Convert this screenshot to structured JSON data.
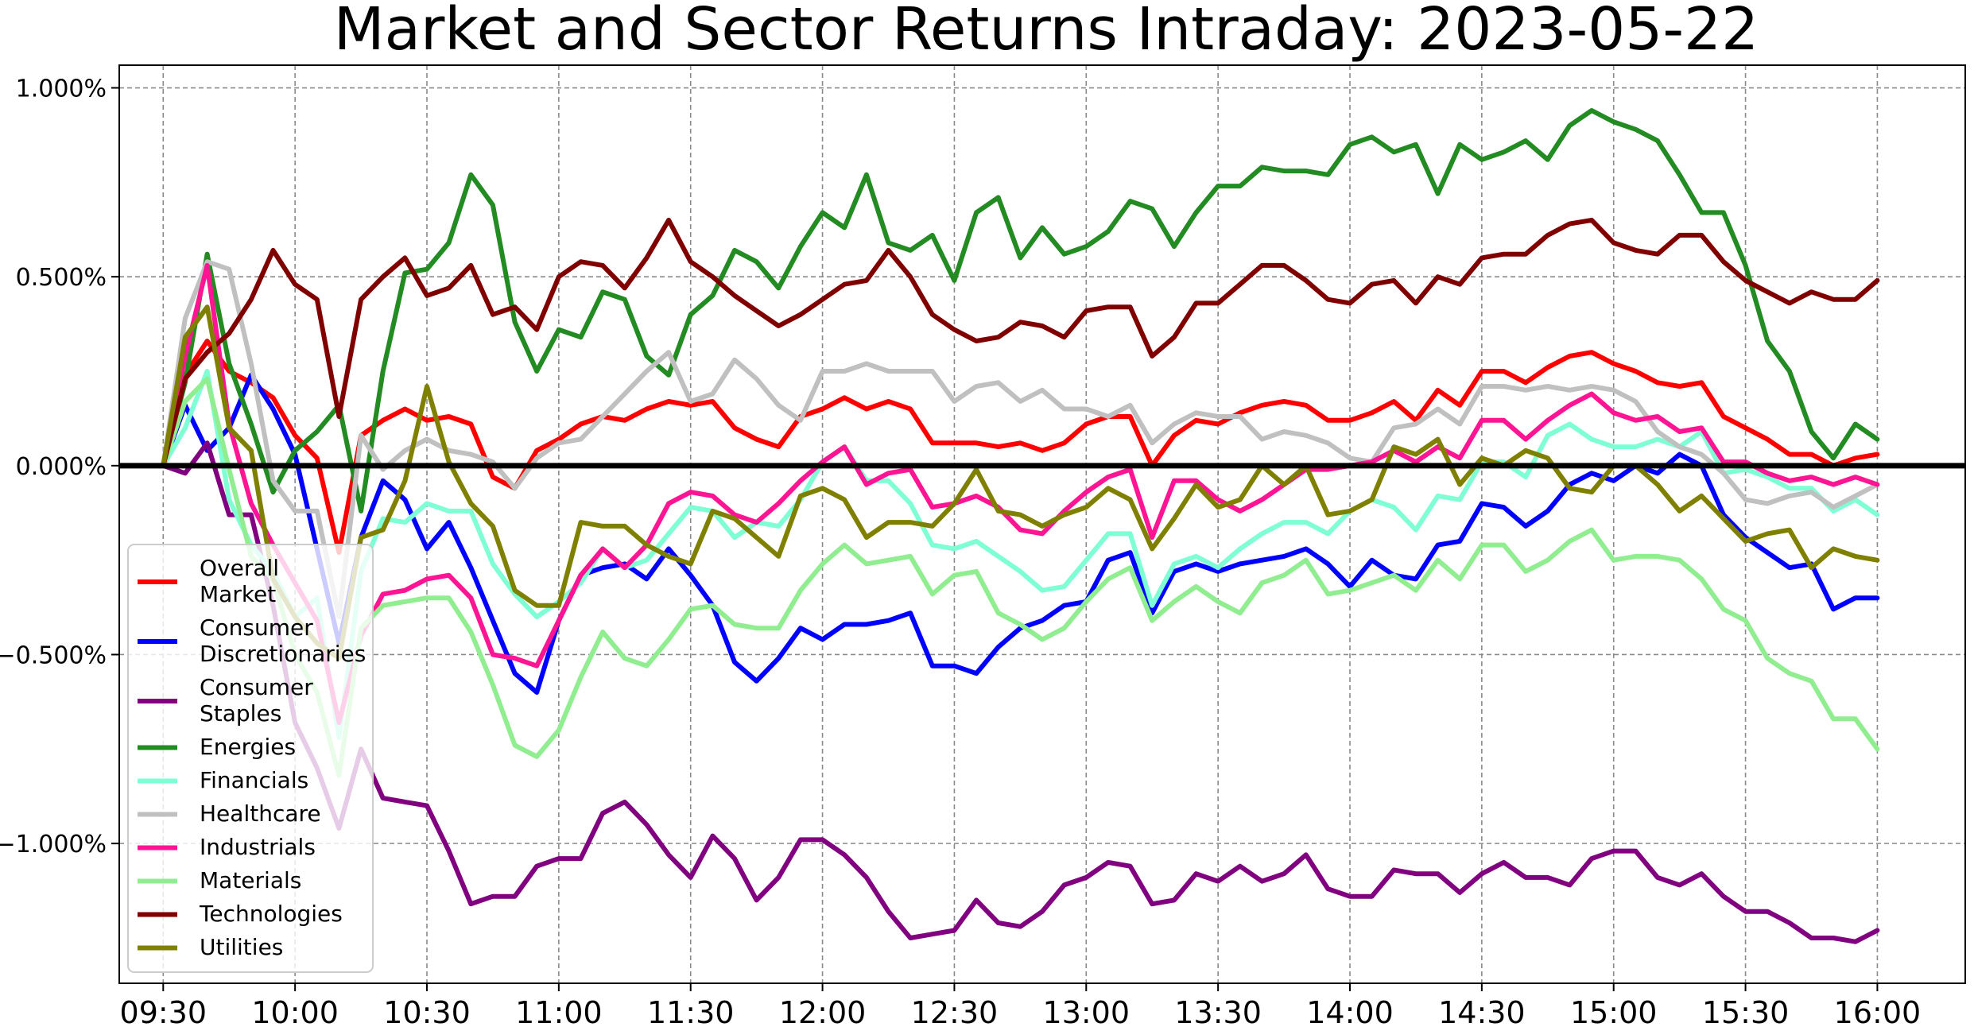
{
  "chart_data": {
    "type": "line",
    "title": "Market and Sector Returns Intraday: 2023-05-22",
    "xlabel": "",
    "ylabel": "",
    "x_ticks": [
      "09:30",
      "10:00",
      "10:30",
      "11:00",
      "11:30",
      "12:00",
      "12:30",
      "13:00",
      "13:30",
      "14:00",
      "14:30",
      "15:00",
      "15:30",
      "16:00"
    ],
    "y_ticks": [
      "−1.000%",
      "−0.500%",
      "0.000%",
      "0.500%",
      "1.000%"
    ],
    "y_tick_values": [
      -1.0,
      -0.5,
      0.0,
      0.5,
      1.0
    ],
    "xlim": [
      "09:20",
      "16:20"
    ],
    "ylim": [
      -1.37,
      1.06
    ],
    "grid": true,
    "zero_line": true,
    "legend_position": "lower-left",
    "x": [
      "09:30",
      "09:35",
      "09:40",
      "09:45",
      "09:50",
      "09:55",
      "10:00",
      "10:05",
      "10:10",
      "10:15",
      "10:20",
      "10:25",
      "10:30",
      "10:35",
      "10:40",
      "10:45",
      "10:50",
      "10:55",
      "11:00",
      "11:05",
      "11:10",
      "11:15",
      "11:20",
      "11:25",
      "11:30",
      "11:35",
      "11:40",
      "11:45",
      "11:50",
      "11:55",
      "12:00",
      "12:05",
      "12:10",
      "12:15",
      "12:20",
      "12:25",
      "12:30",
      "12:35",
      "12:40",
      "12:45",
      "12:50",
      "12:55",
      "13:00",
      "13:05",
      "13:10",
      "13:15",
      "13:20",
      "13:25",
      "13:30",
      "13:35",
      "13:40",
      "13:45",
      "13:50",
      "13:55",
      "14:00",
      "14:05",
      "14:10",
      "14:15",
      "14:20",
      "14:25",
      "14:30",
      "14:35",
      "14:40",
      "14:45",
      "14:50",
      "14:55",
      "15:00",
      "15:05",
      "15:10",
      "15:15",
      "15:20",
      "15:25",
      "15:30",
      "15:35",
      "15:40",
      "15:45",
      "15:50",
      "15:55",
      "16:00"
    ],
    "series": [
      {
        "name": "Overall\nMarket",
        "color": "#ff0000",
        "values": [
          0.0,
          0.24,
          0.33,
          0.25,
          0.22,
          0.18,
          0.08,
          0.02,
          -0.23,
          0.08,
          0.12,
          0.15,
          0.12,
          0.13,
          0.11,
          -0.03,
          -0.06,
          0.04,
          0.07,
          0.11,
          0.13,
          0.12,
          0.15,
          0.17,
          0.16,
          0.17,
          0.1,
          0.07,
          0.05,
          0.13,
          0.15,
          0.18,
          0.15,
          0.17,
          0.15,
          0.06,
          0.06,
          0.06,
          0.05,
          0.06,
          0.04,
          0.06,
          0.11,
          0.13,
          0.13,
          0.0,
          0.08,
          0.12,
          0.11,
          0.14,
          0.16,
          0.17,
          0.16,
          0.12,
          0.12,
          0.14,
          0.17,
          0.12,
          0.2,
          0.16,
          0.25,
          0.25,
          0.22,
          0.26,
          0.29,
          0.3,
          0.27,
          0.25,
          0.22,
          0.21,
          0.22,
          0.13,
          0.1,
          0.07,
          0.03,
          0.03,
          0.0,
          0.02,
          0.03
        ]
      },
      {
        "name": "Consumer\nDiscretionaries",
        "color": "#0000ff",
        "values": [
          0.0,
          0.16,
          0.04,
          0.1,
          0.24,
          0.15,
          0.03,
          -0.22,
          -0.47,
          -0.19,
          -0.04,
          -0.09,
          -0.22,
          -0.15,
          -0.27,
          -0.41,
          -0.55,
          -0.6,
          -0.41,
          -0.29,
          -0.27,
          -0.26,
          -0.3,
          -0.22,
          -0.29,
          -0.37,
          -0.52,
          -0.57,
          -0.51,
          -0.43,
          -0.46,
          -0.42,
          -0.42,
          -0.41,
          -0.39,
          -0.53,
          -0.53,
          -0.55,
          -0.48,
          -0.43,
          -0.41,
          -0.37,
          -0.36,
          -0.25,
          -0.23,
          -0.39,
          -0.28,
          -0.26,
          -0.28,
          -0.26,
          -0.25,
          -0.24,
          -0.22,
          -0.26,
          -0.32,
          -0.25,
          -0.29,
          -0.3,
          -0.21,
          -0.2,
          -0.1,
          -0.11,
          -0.16,
          -0.12,
          -0.05,
          -0.02,
          -0.04,
          0.0,
          -0.02,
          0.03,
          0.0,
          -0.13,
          -0.19,
          -0.23,
          -0.27,
          -0.26,
          -0.38,
          -0.35,
          -0.35
        ]
      },
      {
        "name": "Consumer\nStaples",
        "color": "#800080",
        "values": [
          0.0,
          -0.02,
          0.06,
          -0.13,
          -0.13,
          -0.37,
          -0.68,
          -0.8,
          -0.96,
          -0.75,
          -0.88,
          -0.89,
          -0.9,
          -1.02,
          -1.16,
          -1.14,
          -1.14,
          -1.06,
          -1.04,
          -1.04,
          -0.92,
          -0.89,
          -0.95,
          -1.03,
          -1.09,
          -0.98,
          -1.04,
          -1.15,
          -1.09,
          -0.99,
          -0.99,
          -1.03,
          -1.09,
          -1.18,
          -1.25,
          -1.24,
          -1.23,
          -1.15,
          -1.21,
          -1.22,
          -1.18,
          -1.11,
          -1.09,
          -1.05,
          -1.06,
          -1.16,
          -1.15,
          -1.08,
          -1.1,
          -1.06,
          -1.1,
          -1.08,
          -1.03,
          -1.12,
          -1.14,
          -1.14,
          -1.07,
          -1.08,
          -1.08,
          -1.13,
          -1.08,
          -1.05,
          -1.09,
          -1.09,
          -1.11,
          -1.04,
          -1.02,
          -1.02,
          -1.09,
          -1.11,
          -1.08,
          -1.14,
          -1.18,
          -1.18,
          -1.21,
          -1.25,
          -1.25,
          -1.26,
          -1.23
        ]
      },
      {
        "name": "Energies",
        "color": "#228b22",
        "values": [
          0.0,
          0.22,
          0.56,
          0.27,
          0.11,
          -0.07,
          0.04,
          0.09,
          0.16,
          -0.12,
          0.25,
          0.51,
          0.52,
          0.59,
          0.77,
          0.69,
          0.38,
          0.25,
          0.36,
          0.34,
          0.46,
          0.44,
          0.29,
          0.24,
          0.4,
          0.45,
          0.57,
          0.54,
          0.47,
          0.58,
          0.67,
          0.63,
          0.77,
          0.59,
          0.57,
          0.61,
          0.49,
          0.67,
          0.71,
          0.55,
          0.63,
          0.56,
          0.58,
          0.62,
          0.7,
          0.68,
          0.58,
          0.67,
          0.74,
          0.74,
          0.79,
          0.78,
          0.78,
          0.77,
          0.85,
          0.87,
          0.83,
          0.85,
          0.72,
          0.85,
          0.81,
          0.83,
          0.86,
          0.81,
          0.9,
          0.94,
          0.91,
          0.89,
          0.86,
          0.77,
          0.67,
          0.67,
          0.53,
          0.33,
          0.25,
          0.09,
          0.02,
          0.11,
          0.07
        ]
      },
      {
        "name": "Financials",
        "color": "#7fffd4",
        "values": [
          0.0,
          0.1,
          0.25,
          -0.09,
          -0.21,
          -0.28,
          -0.4,
          -0.35,
          -0.72,
          -0.28,
          -0.14,
          -0.15,
          -0.1,
          -0.12,
          -0.12,
          -0.26,
          -0.34,
          -0.4,
          -0.36,
          -0.31,
          -0.22,
          -0.27,
          -0.25,
          -0.18,
          -0.11,
          -0.12,
          -0.19,
          -0.15,
          -0.16,
          -0.09,
          0.01,
          0.05,
          -0.04,
          -0.04,
          -0.1,
          -0.21,
          -0.22,
          -0.2,
          -0.24,
          -0.28,
          -0.33,
          -0.32,
          -0.25,
          -0.18,
          -0.18,
          -0.37,
          -0.26,
          -0.24,
          -0.27,
          -0.22,
          -0.18,
          -0.15,
          -0.15,
          -0.18,
          -0.12,
          -0.09,
          -0.11,
          -0.17,
          -0.08,
          -0.09,
          0.01,
          0.01,
          -0.03,
          0.08,
          0.11,
          0.07,
          0.05,
          0.05,
          0.07,
          0.05,
          0.09,
          -0.02,
          -0.01,
          -0.03,
          -0.06,
          -0.06,
          -0.12,
          -0.09,
          -0.13
        ]
      },
      {
        "name": "Healthcare",
        "color": "#c0c0c0",
        "values": [
          0.0,
          0.39,
          0.54,
          0.52,
          0.27,
          -0.04,
          -0.12,
          -0.12,
          -0.4,
          0.08,
          -0.01,
          0.04,
          0.07,
          0.04,
          0.03,
          0.01,
          -0.06,
          0.02,
          0.06,
          0.07,
          0.13,
          0.19,
          0.25,
          0.3,
          0.17,
          0.19,
          0.28,
          0.23,
          0.16,
          0.12,
          0.25,
          0.25,
          0.27,
          0.25,
          0.25,
          0.25,
          0.17,
          0.21,
          0.22,
          0.17,
          0.2,
          0.15,
          0.15,
          0.13,
          0.16,
          0.06,
          0.11,
          0.14,
          0.13,
          0.13,
          0.07,
          0.09,
          0.08,
          0.06,
          0.02,
          0.01,
          0.1,
          0.11,
          0.15,
          0.11,
          0.21,
          0.21,
          0.2,
          0.21,
          0.2,
          0.21,
          0.2,
          0.17,
          0.09,
          0.05,
          0.03,
          -0.02,
          -0.09,
          -0.1,
          -0.08,
          -0.07,
          -0.11,
          -0.08,
          -0.05
        ]
      },
      {
        "name": "Industrials",
        "color": "#ff1493",
        "values": [
          0.0,
          0.29,
          0.53,
          0.11,
          -0.1,
          -0.21,
          -0.31,
          -0.41,
          -0.68,
          -0.45,
          -0.34,
          -0.33,
          -0.3,
          -0.29,
          -0.35,
          -0.5,
          -0.51,
          -0.53,
          -0.41,
          -0.29,
          -0.22,
          -0.27,
          -0.21,
          -0.1,
          -0.07,
          -0.08,
          -0.13,
          -0.15,
          -0.1,
          -0.04,
          0.01,
          0.05,
          -0.05,
          -0.02,
          -0.01,
          -0.11,
          -0.1,
          -0.08,
          -0.11,
          -0.17,
          -0.18,
          -0.12,
          -0.07,
          -0.03,
          -0.01,
          -0.19,
          -0.04,
          -0.04,
          -0.09,
          -0.12,
          -0.09,
          -0.05,
          -0.01,
          -0.01,
          0.0,
          0.01,
          0.04,
          0.01,
          0.05,
          0.02,
          0.12,
          0.12,
          0.07,
          0.12,
          0.16,
          0.19,
          0.14,
          0.12,
          0.13,
          0.09,
          0.1,
          0.01,
          0.01,
          -0.02,
          -0.04,
          -0.03,
          -0.05,
          -0.03,
          -0.05
        ]
      },
      {
        "name": "Materials",
        "color": "#90ee90",
        "values": [
          0.0,
          0.17,
          0.23,
          -0.01,
          -0.24,
          -0.3,
          -0.5,
          -0.6,
          -0.82,
          -0.43,
          -0.37,
          -0.36,
          -0.35,
          -0.35,
          -0.44,
          -0.58,
          -0.74,
          -0.77,
          -0.7,
          -0.56,
          -0.44,
          -0.51,
          -0.53,
          -0.46,
          -0.38,
          -0.37,
          -0.42,
          -0.43,
          -0.43,
          -0.33,
          -0.26,
          -0.21,
          -0.26,
          -0.25,
          -0.24,
          -0.34,
          -0.29,
          -0.28,
          -0.39,
          -0.42,
          -0.46,
          -0.43,
          -0.36,
          -0.3,
          -0.27,
          -0.41,
          -0.36,
          -0.32,
          -0.36,
          -0.39,
          -0.31,
          -0.29,
          -0.25,
          -0.34,
          -0.33,
          -0.31,
          -0.29,
          -0.33,
          -0.25,
          -0.3,
          -0.21,
          -0.21,
          -0.28,
          -0.25,
          -0.2,
          -0.17,
          -0.25,
          -0.24,
          -0.24,
          -0.25,
          -0.3,
          -0.38,
          -0.41,
          -0.51,
          -0.55,
          -0.57,
          -0.67,
          -0.67,
          -0.75
        ]
      },
      {
        "name": "Technologies",
        "color": "#800000",
        "values": [
          0.0,
          0.23,
          0.3,
          0.35,
          0.44,
          0.57,
          0.48,
          0.44,
          0.13,
          0.44,
          0.5,
          0.55,
          0.45,
          0.47,
          0.53,
          0.4,
          0.42,
          0.36,
          0.5,
          0.54,
          0.53,
          0.47,
          0.55,
          0.65,
          0.54,
          0.5,
          0.45,
          0.41,
          0.37,
          0.4,
          0.44,
          0.48,
          0.49,
          0.57,
          0.5,
          0.4,
          0.36,
          0.33,
          0.34,
          0.38,
          0.37,
          0.34,
          0.41,
          0.42,
          0.42,
          0.29,
          0.34,
          0.43,
          0.43,
          0.48,
          0.53,
          0.53,
          0.49,
          0.44,
          0.43,
          0.48,
          0.49,
          0.43,
          0.5,
          0.48,
          0.55,
          0.56,
          0.56,
          0.61,
          0.64,
          0.65,
          0.59,
          0.57,
          0.56,
          0.61,
          0.61,
          0.54,
          0.49,
          0.46,
          0.43,
          0.46,
          0.44,
          0.44,
          0.49
        ]
      },
      {
        "name": "Utilities",
        "color": "#808000",
        "values": [
          0.0,
          0.34,
          0.42,
          0.1,
          0.04,
          -0.3,
          -0.4,
          -0.47,
          -0.51,
          -0.19,
          -0.17,
          -0.04,
          0.21,
          0.01,
          -0.1,
          -0.16,
          -0.33,
          -0.37,
          -0.37,
          -0.15,
          -0.16,
          -0.16,
          -0.21,
          -0.24,
          -0.26,
          -0.12,
          -0.14,
          -0.19,
          -0.24,
          -0.08,
          -0.06,
          -0.09,
          -0.19,
          -0.15,
          -0.15,
          -0.16,
          -0.1,
          -0.01,
          -0.12,
          -0.13,
          -0.16,
          -0.13,
          -0.11,
          -0.06,
          -0.09,
          -0.22,
          -0.14,
          -0.05,
          -0.11,
          -0.09,
          0.0,
          -0.05,
          0.0,
          -0.13,
          -0.12,
          -0.09,
          0.05,
          0.03,
          0.07,
          -0.05,
          0.02,
          0.0,
          0.04,
          0.02,
          -0.06,
          -0.07,
          0.0,
          0.0,
          -0.05,
          -0.12,
          -0.08,
          -0.14,
          -0.2,
          -0.18,
          -0.17,
          -0.27,
          -0.22,
          -0.24,
          -0.25
        ]
      }
    ]
  }
}
